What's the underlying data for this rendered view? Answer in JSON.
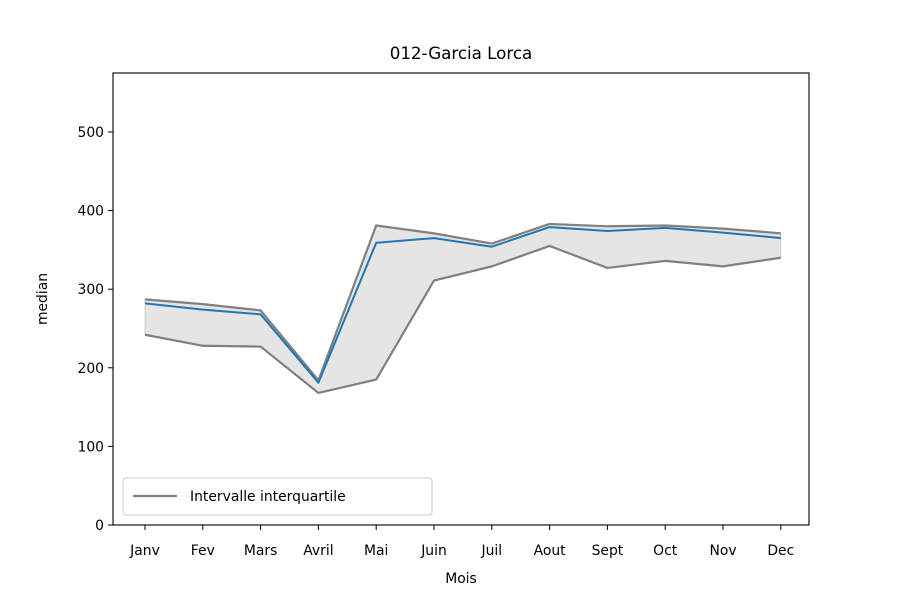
{
  "chart_data": {
    "type": "line",
    "title": "012-Garcia Lorca",
    "xlabel": "Mois",
    "ylabel": "median",
    "categories": [
      "Janv",
      "Fev",
      "Mars",
      "Avril",
      "Mai",
      "Juin",
      "Juil",
      "Aout",
      "Sept",
      "Oct",
      "Nov",
      "Dec"
    ],
    "ylim": [
      0,
      575
    ],
    "yticks": [
      0,
      100,
      200,
      300,
      400,
      500
    ],
    "grid": false,
    "legend": {
      "placement": "lower-left",
      "entries": [
        "Intervalle interquartile"
      ]
    },
    "series": [
      {
        "role": "median",
        "color": "#1f77b4",
        "values": [
          282,
          274,
          268,
          181,
          359,
          365,
          354,
          379,
          374,
          378,
          372,
          365
        ]
      },
      {
        "role": "q3",
        "name": "Intervalle interquartile",
        "color": "#808080",
        "values": [
          287,
          281,
          273,
          184,
          381,
          371,
          358,
          383,
          380,
          381,
          377,
          371
        ]
      },
      {
        "role": "q1",
        "color": "#808080",
        "values": [
          242,
          228,
          227,
          168,
          185,
          311,
          329,
          355,
          327,
          336,
          329,
          340
        ]
      }
    ],
    "fill_color": "#e5e5e5"
  }
}
